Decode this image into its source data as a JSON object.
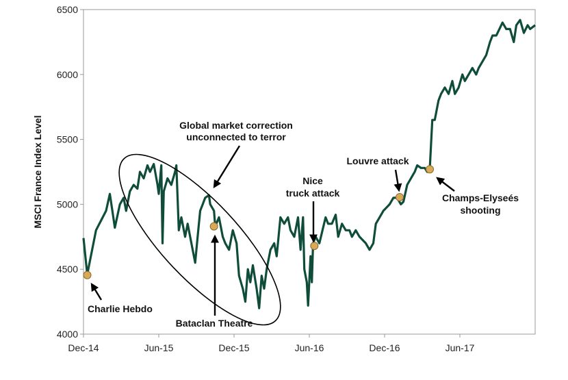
{
  "chart_data": {
    "type": "line",
    "title": "",
    "xlabel": "",
    "ylabel": "MSCI France Index Level",
    "x_unit": "months since Dec-14",
    "xlim": [
      0,
      36
    ],
    "ylim": [
      4000,
      6500
    ],
    "grid": false,
    "y_ticks": [
      4000,
      4500,
      5000,
      5500,
      6000,
      6500
    ],
    "x_ticks": [
      {
        "x": 0,
        "label": "Dec-14"
      },
      {
        "x": 6,
        "label": "Jun-15"
      },
      {
        "x": 12,
        "label": "Dec-15"
      },
      {
        "x": 18,
        "label": "Jun-16"
      },
      {
        "x": 24,
        "label": "Dec-16"
      },
      {
        "x": 30,
        "label": "Jun-17"
      }
    ],
    "series": [
      {
        "name": "MSCI France Index",
        "color": "#0f4d3a",
        "points": [
          [
            0,
            4740
          ],
          [
            0.3,
            4460
          ],
          [
            1.0,
            4800
          ],
          [
            1.8,
            4950
          ],
          [
            2.1,
            5080
          ],
          [
            2.3,
            4950
          ],
          [
            2.5,
            4820
          ],
          [
            2.9,
            5000
          ],
          [
            3.2,
            5050
          ],
          [
            3.4,
            4950
          ],
          [
            3.7,
            5100
          ],
          [
            4.0,
            5150
          ],
          [
            4.3,
            5120
          ],
          [
            4.5,
            5250
          ],
          [
            4.8,
            5200
          ],
          [
            5.1,
            5300
          ],
          [
            5.3,
            5250
          ],
          [
            5.6,
            5310
          ],
          [
            5.9,
            5150
          ],
          [
            6.0,
            5080
          ],
          [
            6.2,
            5300
          ],
          [
            6.3,
            4700
          ],
          [
            6.4,
            5100
          ],
          [
            6.7,
            5200
          ],
          [
            7.0,
            5150
          ],
          [
            7.3,
            5250
          ],
          [
            7.4,
            5300
          ],
          [
            7.5,
            5050
          ],
          [
            7.6,
            4800
          ],
          [
            7.8,
            4900
          ],
          [
            8.1,
            4750
          ],
          [
            8.3,
            4850
          ],
          [
            8.6,
            4700
          ],
          [
            8.9,
            4550
          ],
          [
            9.1,
            4750
          ],
          [
            9.3,
            4950
          ],
          [
            9.5,
            5000
          ],
          [
            9.7,
            5050
          ],
          [
            10.0,
            5070
          ],
          [
            10.1,
            5000
          ],
          [
            10.4,
            4950
          ],
          [
            10.5,
            4830
          ],
          [
            10.8,
            4900
          ],
          [
            11.1,
            4750
          ],
          [
            11.3,
            4700
          ],
          [
            11.6,
            4650
          ],
          [
            11.9,
            4800
          ],
          [
            12.2,
            4700
          ],
          [
            12.4,
            4450
          ],
          [
            12.7,
            4350
          ],
          [
            12.9,
            4250
          ],
          [
            13.1,
            4500
          ],
          [
            13.3,
            4400
          ],
          [
            13.5,
            4530
          ],
          [
            13.8,
            4350
          ],
          [
            14.0,
            4200
          ],
          [
            14.2,
            4450
          ],
          [
            14.4,
            4350
          ],
          [
            14.6,
            4500
          ],
          [
            14.9,
            4650
          ],
          [
            15.2,
            4700
          ],
          [
            15.4,
            4600
          ],
          [
            15.7,
            4900
          ],
          [
            16.0,
            4850
          ],
          [
            16.3,
            4900
          ],
          [
            16.5,
            4800
          ],
          [
            16.8,
            4750
          ],
          [
            17.1,
            4900
          ],
          [
            17.3,
            4650
          ],
          [
            17.5,
            4900
          ],
          [
            17.6,
            4500
          ],
          [
            17.8,
            4400
          ],
          [
            17.9,
            4220
          ],
          [
            18.1,
            4600
          ],
          [
            18.2,
            4400
          ],
          [
            18.3,
            4700
          ],
          [
            18.5,
            4750
          ],
          [
            18.8,
            4700
          ],
          [
            19.3,
            4900
          ],
          [
            19.5,
            4850
          ],
          [
            19.8,
            4850
          ],
          [
            20.1,
            4920
          ],
          [
            20.3,
            4750
          ],
          [
            20.6,
            4850
          ],
          [
            20.9,
            4800
          ],
          [
            21.2,
            4800
          ],
          [
            21.4,
            4750
          ],
          [
            21.7,
            4800
          ],
          [
            22.0,
            4750
          ],
          [
            22.5,
            4700
          ],
          [
            22.8,
            4650
          ],
          [
            23.1,
            4700
          ],
          [
            23.3,
            4850
          ],
          [
            23.6,
            4900
          ],
          [
            23.9,
            4950
          ],
          [
            24.2,
            4980
          ],
          [
            24.4,
            5000
          ],
          [
            24.7,
            5050
          ],
          [
            25.0,
            5050
          ],
          [
            25.3,
            5000
          ],
          [
            25.5,
            5020
          ],
          [
            25.8,
            5150
          ],
          [
            26.1,
            5200
          ],
          [
            26.4,
            5250
          ],
          [
            26.6,
            5300
          ],
          [
            26.9,
            5280
          ],
          [
            27.2,
            5280
          ],
          [
            27.4,
            5250
          ],
          [
            27.6,
            5270
          ],
          [
            27.8,
            5650
          ],
          [
            28.0,
            5650
          ],
          [
            28.3,
            5800
          ],
          [
            28.5,
            5850
          ],
          [
            28.8,
            5900
          ],
          [
            29.1,
            5850
          ],
          [
            29.4,
            5950
          ],
          [
            29.6,
            5850
          ],
          [
            29.9,
            5900
          ],
          [
            30.2,
            6000
          ],
          [
            30.4,
            5950
          ],
          [
            31.0,
            6050
          ],
          [
            31.3,
            6000
          ],
          [
            31.5,
            6050
          ],
          [
            32.1,
            6150
          ],
          [
            32.4,
            6250
          ],
          [
            32.6,
            6300
          ],
          [
            32.9,
            6300
          ],
          [
            33.4,
            6400
          ],
          [
            33.7,
            6350
          ],
          [
            34.0,
            6350
          ],
          [
            34.3,
            6250
          ],
          [
            34.5,
            6380
          ],
          [
            34.8,
            6420
          ],
          [
            35.1,
            6320
          ],
          [
            35.4,
            6380
          ],
          [
            35.6,
            6350
          ],
          [
            36.0,
            6380
          ]
        ]
      }
    ],
    "marker_color": "#d9a95a",
    "events": [
      {
        "name": "Charlie Hebdo",
        "x": 0.3,
        "y": 4455
      },
      {
        "name": "Bataclan Theatre",
        "x": 10.4,
        "y": 4830
      },
      {
        "name": "Nice truck attack",
        "x": 18.4,
        "y": 4680
      },
      {
        "name": "Louvre attack",
        "x": 25.2,
        "y": 5055
      },
      {
        "name": "Champs-Elyseés shooting",
        "x": 27.6,
        "y": 5270
      }
    ],
    "annotations": {
      "charlie": "Charlie Hebdo",
      "bataclan": "Bataclan Theatre",
      "nice_1": "Nice",
      "nice_2": "truck attack",
      "louvre": "Louvre attack",
      "champs_1": "Champs-Elyseés",
      "champs_2": "shooting",
      "correction_1": "Global market correction",
      "correction_2": "unconnected to terror"
    }
  }
}
